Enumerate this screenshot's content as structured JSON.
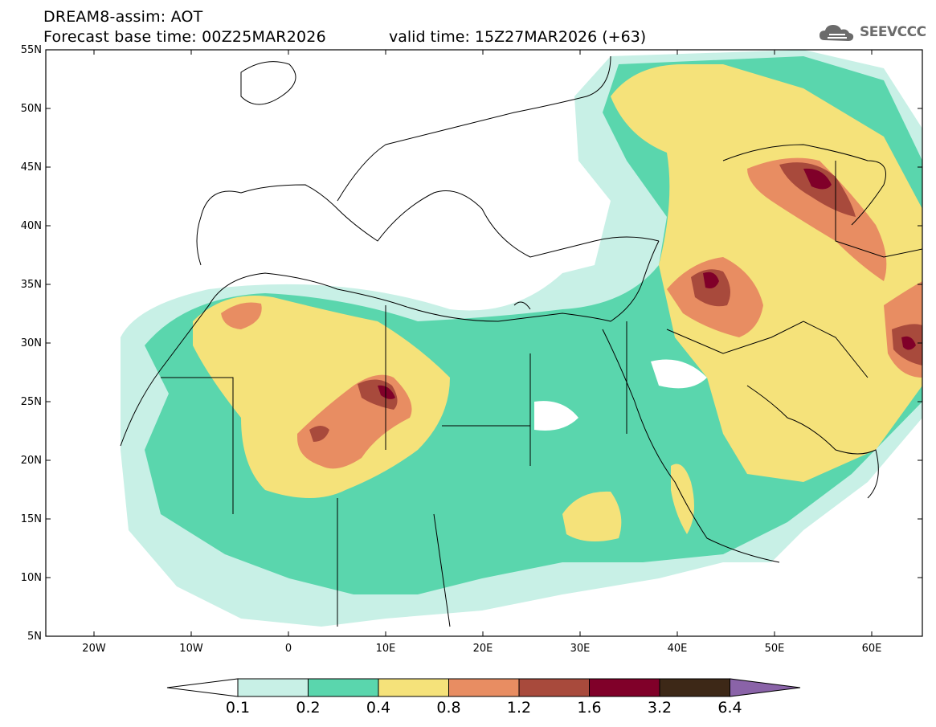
{
  "header": {
    "title_line1": "DREAM8-assim: AOT",
    "title_line2": "Forecast base time: 00Z25MAR2026",
    "valid_time": "valid time: 15Z27MAR2026 (+63)",
    "logo_text": "SEEVCCC"
  },
  "map": {
    "lon_range": [
      -25,
      65
    ],
    "lat_range": [
      5,
      55
    ],
    "lat_ticks": [
      "55N",
      "50N",
      "45N",
      "40N",
      "35N",
      "30N",
      "25N",
      "20N",
      "15N",
      "10N",
      "5N"
    ],
    "lon_ticks": [
      "20W",
      "10W",
      "0",
      "10E",
      "20E",
      "30E",
      "40E",
      "50E",
      "60E"
    ]
  },
  "colorbar": {
    "levels": [
      "0.1",
      "0.2",
      "0.4",
      "0.8",
      "1.2",
      "1.6",
      "3.2",
      "6.4"
    ],
    "colors": [
      "#c8f0e6",
      "#5ad6ad",
      "#f5e27a",
      "#e88d62",
      "#a84a3c",
      "#800029",
      "#3d2817",
      "#8a63a8"
    ]
  }
}
